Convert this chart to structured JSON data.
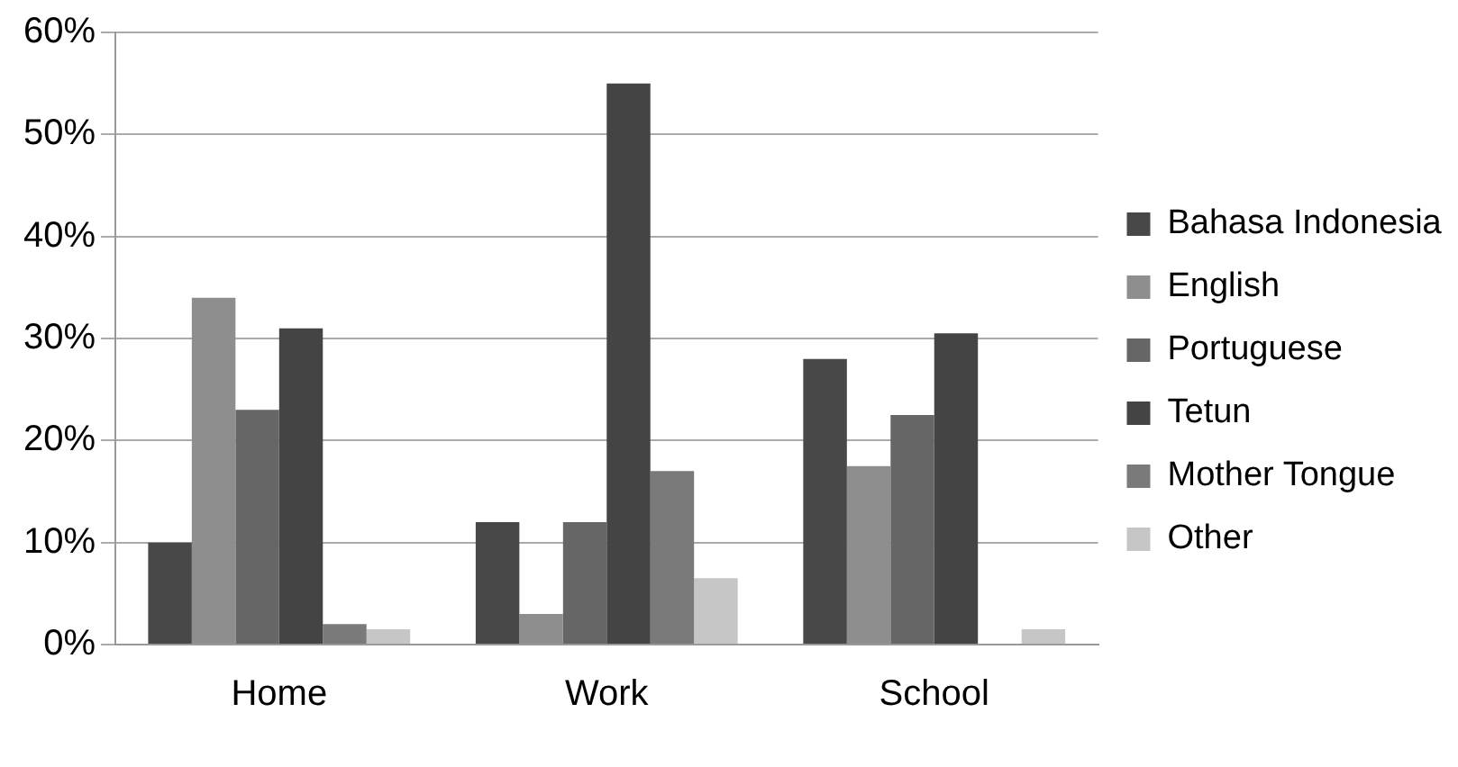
{
  "chart_data": {
    "type": "bar",
    "categories": [
      "Home",
      "Work",
      "School"
    ],
    "series": [
      {
        "name": "Bahasa Indonesia",
        "color": "#484848",
        "values": [
          10,
          12,
          28
        ]
      },
      {
        "name": "English",
        "color": "#8e8e8e",
        "values": [
          34,
          3,
          17.5
        ]
      },
      {
        "name": "Portuguese",
        "color": "#666666",
        "values": [
          23,
          12,
          22.5
        ]
      },
      {
        "name": "Tetun",
        "color": "#444444",
        "values": [
          31,
          55,
          30.5
        ]
      },
      {
        "name": "Mother Tongue",
        "color": "#7a7a7a",
        "values": [
          2,
          17,
          0
        ]
      },
      {
        "name": "Other",
        "color": "#c6c6c6",
        "values": [
          1.5,
          6.5,
          1.5
        ]
      }
    ],
    "ylim": [
      0,
      60
    ],
    "yticks": [
      {
        "value": 0,
        "label": "0%"
      },
      {
        "value": 10,
        "label": "10%"
      },
      {
        "value": 20,
        "label": "20%"
      },
      {
        "value": 30,
        "label": "30%"
      },
      {
        "value": 40,
        "label": "40%"
      },
      {
        "value": 50,
        "label": "50%"
      },
      {
        "value": 60,
        "label": "60%"
      }
    ],
    "grid": "y",
    "legend": "right"
  }
}
